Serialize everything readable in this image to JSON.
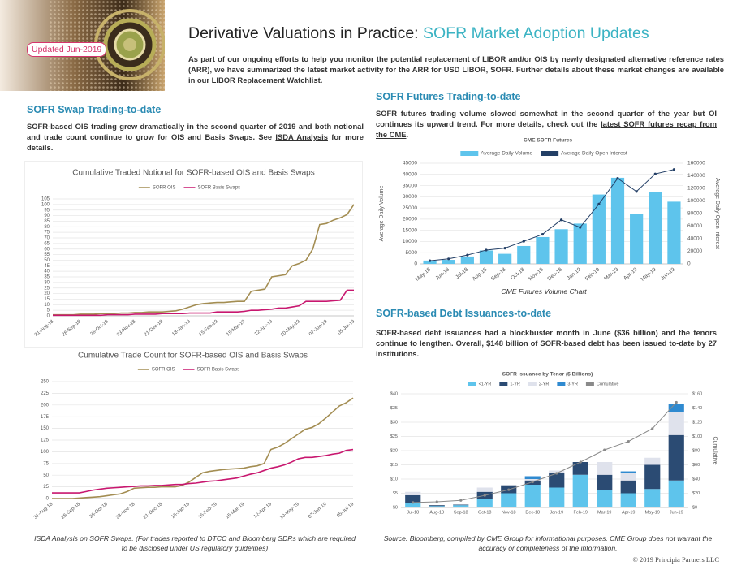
{
  "header": {
    "badge": "Updated Jun-2019",
    "title": "Derivative Valuations in Practice: ",
    "title_highlight": "SOFR Market Adoption Updates",
    "intro": [
      "As part of our ongoing efforts to help you monitor the potential replacement of LIBOR and/or OIS by newly designated alternative reference rates (ARR), we have summarized the latest market activity for the ARR for USD LIBOR, SOFR. Further details about these market changes are available in our ",
      "LIBOR Replacement Watchlist",
      "."
    ]
  },
  "swap_section": {
    "heading": "SOFR Swap Trading-to-date",
    "text": [
      "SOFR-based OIS trading grew dramatically in the second quarter of 2019 and both notional and trade count continue to grow for OIS and Basis Swaps. See ",
      "ISDA Analysis",
      " for more details."
    ],
    "caption": "ISDA Analysis on SOFR Swaps. (For trades reported to DTCC and Bloomberg SDRs which are required to be disclosed under US regulatory guidelines)"
  },
  "futures_section": {
    "heading": "SOFR Futures Trading-to-date",
    "text": [
      "SOFR futures trading volume slowed somewhat in the second quarter of the year but OI continues its upward trend. For more details, check out the ",
      "latest SOFR futures recap from the CME",
      "."
    ],
    "caption": "CME Futures Volume Chart"
  },
  "debt_section": {
    "heading": "SOFR-based Debt Issuances-to-date",
    "text": "SOFR-based debt issuances had a blockbuster month in June ($36 billion) and the tenors continue to lengthen. Overall, $148 billion of SOFR-based debt has been issued to-date by 27 institutions.",
    "caption": "Source: Bloomberg, compiled by CME Group for informational purposes. CME Group does not warrant the accuracy or completeness of the information."
  },
  "footer": {
    "copyright": "© 2019 Principia Partners LLC"
  },
  "chart_data": [
    {
      "type": "line",
      "title": "Cumulative Traded Notional for SOFR-based OIS and Basis Swaps",
      "categories": [
        "31-Aug-18",
        null,
        null,
        null,
        "28-Sep-18",
        null,
        null,
        null,
        "26-Oct-18",
        null,
        null,
        null,
        "23-Nov-18",
        null,
        null,
        null,
        "21-Dec-18",
        null,
        null,
        null,
        "18-Jan-19",
        null,
        null,
        null,
        "15-Feb-19",
        null,
        null,
        null,
        "15-Mar-19",
        null,
        null,
        null,
        "12-Apr-19",
        null,
        null,
        null,
        "10-May-19",
        null,
        null,
        null,
        "07-Jun-19",
        null,
        null,
        null,
        "05-Jul-19"
      ],
      "series": [
        {
          "name": "SOFR OIS",
          "color": "#a38d52",
          "values": [
            1,
            1,
            1,
            1,
            1.5,
            1.5,
            1.5,
            2,
            2,
            2,
            2.5,
            2.5,
            3,
            3,
            3.5,
            3.5,
            3.5,
            4,
            4.5,
            6,
            8,
            10,
            11,
            11.5,
            12,
            12,
            12.5,
            13,
            13,
            22,
            23,
            24,
            35,
            36,
            37,
            45,
            47,
            50,
            60,
            82,
            83,
            86,
            88,
            91,
            100
          ]
        },
        {
          "name": "SOFR Basis Swaps",
          "color": "#c8176f",
          "values": [
            0.5,
            0.5,
            0.5,
            0.5,
            0.5,
            0.5,
            0.5,
            0.5,
            1,
            1,
            1,
            1,
            1.5,
            1.5,
            1.5,
            1.5,
            2,
            2,
            2,
            2,
            2.5,
            2.5,
            2.5,
            2.5,
            3.5,
            3.5,
            3.5,
            3.5,
            4,
            5,
            5,
            5.5,
            6,
            7,
            7,
            8,
            9,
            13,
            13,
            13,
            13,
            13.5,
            14,
            23,
            23
          ]
        }
      ],
      "ylim": [
        0,
        105
      ],
      "yticks": [
        0,
        5,
        10,
        15,
        20,
        25,
        30,
        35,
        40,
        45,
        50,
        55,
        60,
        65,
        70,
        75,
        80,
        85,
        90,
        95,
        100,
        105
      ],
      "grid": true
    },
    {
      "type": "line",
      "title": "Cumulative Trade Count for SOFR-based OIS and Basis Swaps",
      "categories": [
        "31-Aug-18",
        null,
        null,
        null,
        "28-Sep-18",
        null,
        null,
        null,
        "26-Oct-18",
        null,
        null,
        null,
        "23-Nov-18",
        null,
        null,
        null,
        "21-Dec-18",
        null,
        null,
        null,
        "18-Jan-19",
        null,
        null,
        null,
        "15-Feb-19",
        null,
        null,
        null,
        "15-Mar-19",
        null,
        null,
        null,
        "12-Apr-19",
        null,
        null,
        null,
        "10-May-19",
        null,
        null,
        null,
        "07-Jun-19",
        null,
        null,
        null,
        "05-Jul-19"
      ],
      "series": [
        {
          "name": "SOFR OIS",
          "color": "#a38d52",
          "values": [
            0,
            0,
            0,
            0,
            1,
            2,
            3,
            4,
            6,
            8,
            10,
            15,
            22,
            23,
            24,
            24,
            25,
            25,
            25,
            28,
            35,
            45,
            55,
            58,
            60,
            62,
            63,
            64,
            65,
            68,
            70,
            75,
            105,
            110,
            118,
            128,
            138,
            148,
            152,
            160,
            172,
            185,
            198,
            205,
            215
          ]
        },
        {
          "name": "SOFR Basis Swaps",
          "color": "#c8176f",
          "values": [
            12,
            12,
            12,
            12,
            12,
            15,
            18,
            20,
            22,
            23,
            24,
            25,
            26,
            27,
            27,
            28,
            28,
            29,
            30,
            30,
            32,
            33,
            35,
            37,
            38,
            40,
            42,
            44,
            48,
            52,
            55,
            60,
            65,
            68,
            72,
            78,
            85,
            88,
            88,
            90,
            92,
            95,
            97,
            103,
            105
          ]
        }
      ],
      "ylim": [
        0,
        250
      ],
      "yticks": [
        0,
        25,
        50,
        75,
        100,
        125,
        150,
        175,
        200,
        225,
        250
      ],
      "grid": true
    },
    {
      "type": "combo",
      "title": "CME SOFR Futures",
      "categories": [
        "May-18",
        "Jun-18",
        "Jul-18",
        "Aug-18",
        "Sep-18",
        "Oct-18",
        "Nov-18",
        "Dec-18",
        "Jan-19",
        "Feb-19",
        "Mar-19",
        "Apr-19",
        "May-19",
        "Jun-19"
      ],
      "series": [
        {
          "name": "Average Daily Volume",
          "color": "#5ec4ec",
          "values": [
            1500,
            1800,
            3300,
            6000,
            4500,
            8000,
            12000,
            15500,
            18000,
            31000,
            38500,
            22500,
            32000,
            27800
          ]
        },
        {
          "name": "Average Daily Open Interest",
          "color": "#233f66",
          "axis": "y2",
          "values": [
            5000,
            8000,
            14000,
            22000,
            25000,
            36000,
            47000,
            70000,
            58000,
            95000,
            136000,
            115000,
            143000,
            150000
          ]
        }
      ],
      "ylabel": "Average Daily Volume",
      "y2label": "Average Daily Open Interest",
      "ylim": [
        0,
        45000
      ],
      "yticks": [
        0,
        5000,
        10000,
        15000,
        20000,
        25000,
        30000,
        35000,
        40000,
        45000
      ],
      "y2lim": [
        0,
        160000
      ],
      "y2ticks": [
        0,
        20000,
        40000,
        60000,
        80000,
        100000,
        120000,
        140000,
        160000
      ],
      "grid": true
    },
    {
      "type": "combo",
      "stacked": true,
      "title": "SOFR Issuance by Tenor ($ Billions)",
      "categories": [
        "Jul-18",
        "Aug-18",
        "Sep-18",
        "Oct-18",
        "Nov-18",
        "Dec-18",
        "Jan-19",
        "Feb-19",
        "Mar-19",
        "Apr-19",
        "May-19",
        "Jun-19"
      ],
      "series": [
        {
          "name": "<1-YR",
          "color": "#5ec4ec",
          "values": [
            1.5,
            0.5,
            0.8,
            3,
            5,
            8,
            7,
            11.5,
            6,
            5,
            6.5,
            9.5
          ]
        },
        {
          "name": "1-YR",
          "color": "#2b4b73",
          "values": [
            2.8,
            0.3,
            0.2,
            2.5,
            2.8,
            1.5,
            5,
            4.5,
            5.5,
            4.5,
            8.5,
            16
          ]
        },
        {
          "name": "2-YR",
          "color": "#dfe2ec",
          "values": [
            1.2,
            0,
            0,
            1.5,
            0,
            0.5,
            1,
            0,
            4.5,
            2.5,
            2.5,
            8
          ]
        },
        {
          "name": "3-YR",
          "color": "#2f8ad0",
          "values": [
            0,
            0,
            0,
            0,
            0,
            1,
            0,
            0,
            0,
            0.7,
            0,
            2.8
          ]
        },
        {
          "name": "Cumulative",
          "color": "#8a8a8a",
          "axis": "y2",
          "values": [
            7,
            8,
            10,
            17,
            25,
            36,
            48,
            64,
            81,
            93,
            111,
            148
          ]
        }
      ],
      "y2label": "Cumulative",
      "ylim": [
        0,
        40
      ],
      "yticks": [
        {
          "value": 0,
          "label": "$0"
        },
        {
          "value": 5,
          "label": "$5"
        },
        {
          "value": 10,
          "label": "$10"
        },
        {
          "value": 15,
          "label": "$15"
        },
        {
          "value": 20,
          "label": "$20"
        },
        {
          "value": 25,
          "label": "$25"
        },
        {
          "value": 30,
          "label": "$30"
        },
        {
          "value": 35,
          "label": "$35"
        },
        {
          "value": 40,
          "label": "$40"
        }
      ],
      "y2lim": [
        0,
        160
      ],
      "y2ticks": [
        {
          "value": 0,
          "label": "$0"
        },
        {
          "value": 20,
          "label": "$20"
        },
        {
          "value": 40,
          "label": "$40"
        },
        {
          "value": 60,
          "label": "$60"
        },
        {
          "value": 80,
          "label": "$80"
        },
        {
          "value": 100,
          "label": "$100"
        },
        {
          "value": 120,
          "label": "$120"
        },
        {
          "value": 140,
          "label": "$140"
        },
        {
          "value": 160,
          "label": "$160"
        }
      ],
      "grid": true
    }
  ]
}
